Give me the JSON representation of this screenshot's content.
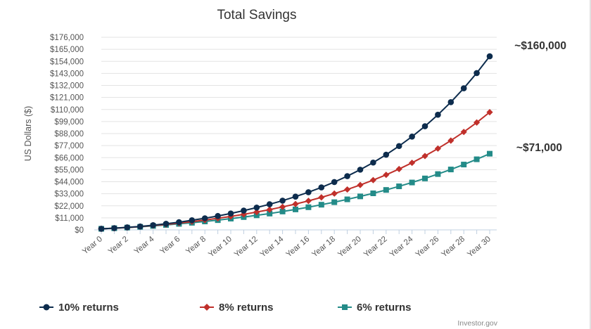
{
  "chart_data": {
    "type": "line",
    "title": "Total Savings",
    "ylabel": "US Dollars ($)",
    "xlabel": "",
    "ylim": [
      0,
      176000
    ],
    "grid": true,
    "legend_placement": "bottom",
    "y_ticks": [
      "$0",
      "$11,000",
      "$22,000",
      "$33,000",
      "$44,000",
      "$55,000",
      "$66,000",
      "$77,000",
      "$88,000",
      "$99,000",
      "$110,000",
      "$121,000",
      "$132,000",
      "$143,000",
      "$154,000",
      "$165,000",
      "$176,000"
    ],
    "x_tick_labels": [
      "Year 0",
      "Year 2",
      "Year 4",
      "Year 6",
      "Year 8",
      "Year 10",
      "Year 12",
      "Year 14",
      "Year 16",
      "Year 18",
      "Year 20",
      "Year 22",
      "Year 24",
      "Year 26",
      "Year 28",
      "Year 30"
    ],
    "x": [
      0,
      1,
      2,
      3,
      4,
      5,
      6,
      7,
      8,
      9,
      10,
      11,
      12,
      13,
      14,
      15,
      16,
      17,
      18,
      19,
      20,
      21,
      22,
      23,
      24,
      25,
      26,
      27,
      28,
      29,
      30
    ],
    "series": [
      {
        "name": "10% returns",
        "color": "#0d2c4d",
        "marker": "circle",
        "values": [
          1000,
          1600,
          2300,
          3100,
          4300,
          5600,
          7000,
          8800,
          10600,
          12700,
          15000,
          17600,
          20400,
          23400,
          26700,
          30400,
          34400,
          38800,
          43700,
          49100,
          55000,
          61500,
          68700,
          76600,
          85200,
          94700,
          105200,
          116700,
          129400,
          143300,
          158600
        ]
      },
      {
        "name": "8% returns",
        "color": "#c0302b",
        "marker": "diamond",
        "values": [
          1000,
          1500,
          2200,
          3000,
          4000,
          5000,
          6200,
          7500,
          9000,
          10600,
          12300,
          14200,
          16300,
          18500,
          21000,
          23600,
          26500,
          29700,
          33200,
          36900,
          41000,
          45500,
          50300,
          55600,
          61300,
          67500,
          74300,
          81600,
          89500,
          98100,
          107500
        ]
      },
      {
        "name": "6% returns",
        "color": "#238b88",
        "marker": "square",
        "values": [
          1000,
          1500,
          2100,
          2800,
          3600,
          4500,
          5500,
          6500,
          7700,
          8900,
          10300,
          11700,
          13300,
          14900,
          16800,
          18700,
          20700,
          23000,
          25300,
          27900,
          30600,
          33400,
          36500,
          39800,
          43300,
          47000,
          51000,
          55200,
          59700,
          64500,
          69600
        ]
      }
    ],
    "annotations": [
      "~$160,000",
      "~$71,000"
    ],
    "credit": "Investor.gov"
  }
}
